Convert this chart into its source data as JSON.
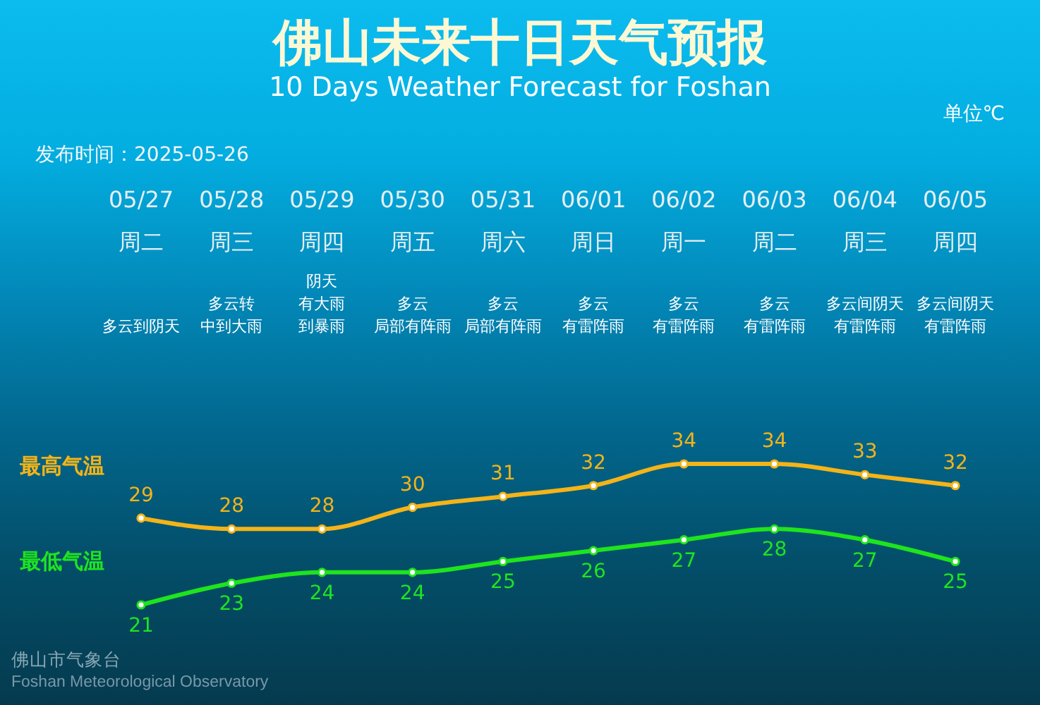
{
  "chart_data": {
    "type": "line",
    "title": "佛山未来十日天气预报",
    "subtitle": "10 Days Weather Forecast for Foshan",
    "ylabel": "单位℃",
    "categories": [
      "05/27",
      "05/28",
      "05/29",
      "05/30",
      "05/31",
      "06/01",
      "06/02",
      "06/03",
      "06/04",
      "06/05"
    ],
    "series": [
      {
        "name": "最高气温",
        "color": "#f4b418",
        "values": [
          29,
          28,
          28,
          30,
          31,
          32,
          34,
          34,
          33,
          32
        ]
      },
      {
        "name": "最低气温",
        "color": "#1ee41e",
        "values": [
          21,
          23,
          24,
          24,
          25,
          26,
          27,
          28,
          27,
          25
        ]
      }
    ],
    "data_labels": true,
    "marker": "circle",
    "annotations": [
      "发布时间：2025-05-26",
      "佛山市气象台",
      "Foshan Meteorological Observatory",
      "周二",
      "周三",
      "周四",
      "周五",
      "周六",
      "周日",
      "周一",
      "周二",
      "周三",
      "周四",
      "多云到阴天",
      "多云转",
      "中到大雨",
      "阴天",
      "有大雨",
      "到暴雨",
      "多云",
      "局部有阵雨",
      "多云",
      "局部有阵雨",
      "多云",
      "有雷阵雨",
      "多云",
      "有雷阵雨",
      "多云",
      "有雷阵雨",
      "多云间阴天",
      "有雷阵雨",
      "多云间阴天",
      "有雷阵雨"
    ]
  }
}
